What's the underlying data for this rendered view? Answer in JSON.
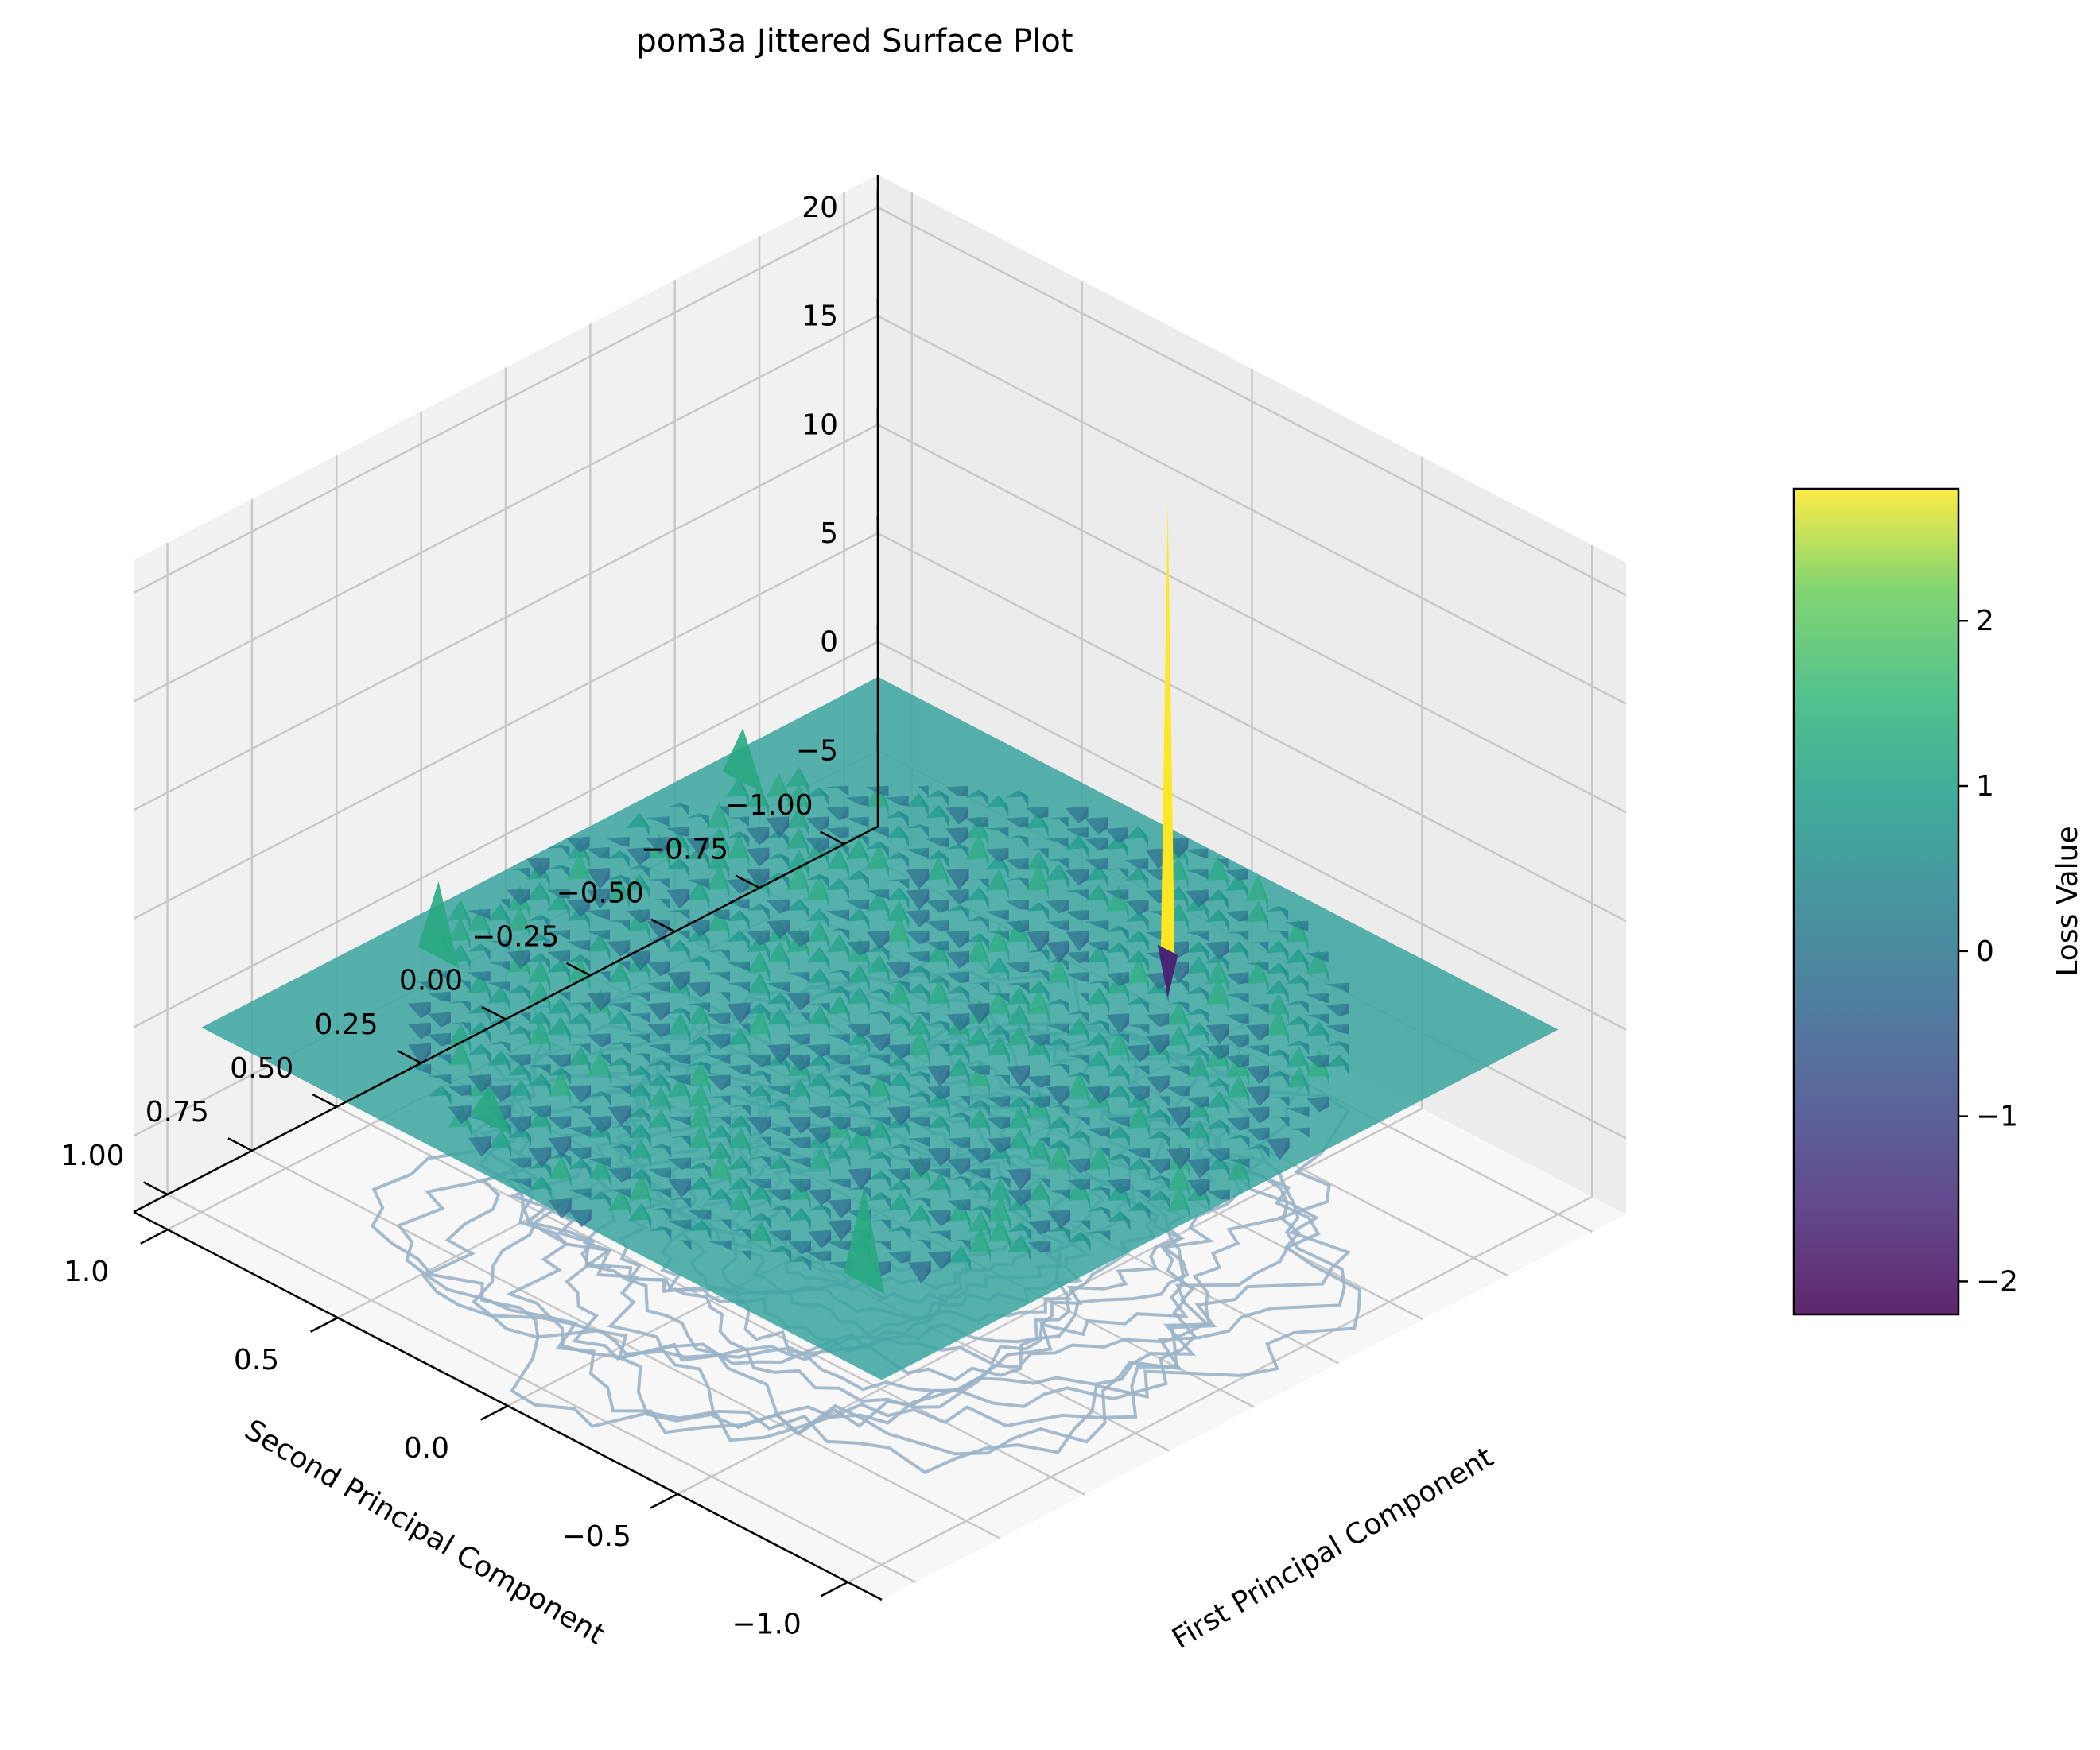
{
  "chart_data": {
    "type": "surface3d",
    "title": "pom3a Jittered Surface Plot",
    "xlabel": "First Principal Component",
    "ylabel": "Second Principal Component",
    "zlabel": "",
    "x_ticks": [
      "−1.0",
      "−0.5",
      "0.0",
      "0.5",
      "1.0"
    ],
    "x_tick_values": [
      -1.0,
      -0.5,
      0.0,
      0.5,
      1.0
    ],
    "y_ticks": [
      "−1.00",
      "−0.75",
      "−0.50",
      "−0.25",
      "0.00",
      "0.25",
      "0.50",
      "0.75",
      "1.00"
    ],
    "y_tick_values": [
      -1.0,
      -0.75,
      -0.5,
      -0.25,
      0.0,
      0.25,
      0.5,
      0.75,
      1.0
    ],
    "z_ticks": [
      "−5",
      "0",
      "5",
      "10",
      "15",
      "20"
    ],
    "z_tick_values": [
      -5,
      0,
      5,
      10,
      15,
      20
    ],
    "xlim": [
      -1.1,
      1.1
    ],
    "ylim": [
      -1.1,
      1.1
    ],
    "zlim": [
      -8.5,
      21.5
    ],
    "colorbar": {
      "label": "Loss Value",
      "ticks": [
        "−2",
        "−1",
        "0",
        "1",
        "2"
      ],
      "tick_values": [
        -2,
        -1,
        0,
        1,
        2
      ],
      "range": [
        -2.2,
        2.8
      ],
      "colormap": "viridis"
    },
    "features": {
      "baseline_z": 0,
      "peak": {
        "x": -0.2,
        "y": -0.65,
        "z": 20.5,
        "loss": 2.8
      },
      "contour_offset_z": -8.5,
      "grid": true
    }
  },
  "colors": {
    "surface": "#3aa4a0",
    "contour": "#9bb4c8",
    "pane": "#f2f2f2",
    "grid": "#cccccc"
  }
}
